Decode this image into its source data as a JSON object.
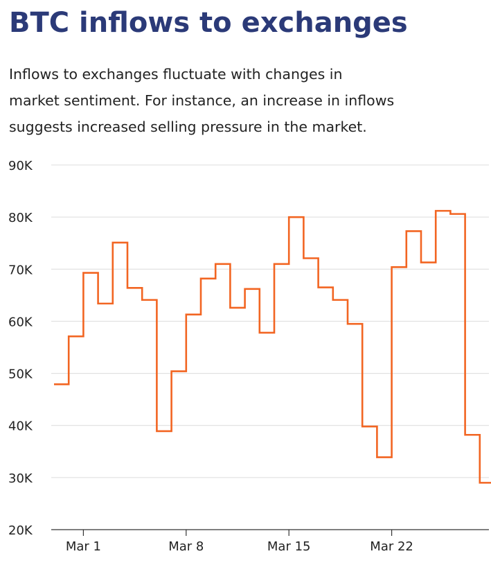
{
  "header": {
    "title": "BTC inflows to exchanges",
    "subtitle_lines": [
      "Inflows to exchanges fluctuate with changes in",
      "market sentiment. For instance, an increase in inflows",
      "suggests increased selling pressure in the market."
    ]
  },
  "chart_data": {
    "type": "line",
    "step": true,
    "title": "BTC inflows to exchanges",
    "subtitle": "Inflows to exchanges fluctuate with changes in market sentiment. For instance, an increase in inflows suggests increased selling pressure in the market.",
    "xlabel": "",
    "ylabel": "",
    "ylim": [
      20000,
      90000
    ],
    "yticks": [
      20000,
      30000,
      40000,
      50000,
      60000,
      70000,
      80000,
      90000
    ],
    "ytick_labels": [
      "20K",
      "30K",
      "40K",
      "50K",
      "60K",
      "70K",
      "80K",
      "90K"
    ],
    "xlim": [
      "Feb 27",
      "Mar 29"
    ],
    "xticks": [
      "Mar 1",
      "Mar 8",
      "Mar 15",
      "Mar 22"
    ],
    "grid": "horizontal",
    "line_color": "#f26522",
    "series": [
      {
        "x": [
          "Feb 27",
          "Feb 28",
          "Mar 1",
          "Mar 2",
          "Mar 3",
          "Mar 4",
          "Mar 5",
          "Mar 6",
          "Mar 7",
          "Mar 8",
          "Mar 9",
          "Mar 10",
          "Mar 11",
          "Mar 12",
          "Mar 13",
          "Mar 14",
          "Mar 15",
          "Mar 16",
          "Mar 17",
          "Mar 18",
          "Mar 19",
          "Mar 20",
          "Mar 21",
          "Mar 22",
          "Mar 23",
          "Mar 24",
          "Mar 25",
          "Mar 26",
          "Mar 27",
          "Mar 28",
          "Mar 29"
        ],
        "values": [
          47900,
          57100,
          69300,
          63400,
          75100,
          66400,
          64100,
          38900,
          50400,
          61300,
          68200,
          71000,
          62600,
          66200,
          57800,
          71000,
          80000,
          72100,
          66500,
          64100,
          59500,
          39800,
          33900,
          70400,
          77300,
          71300,
          81200,
          80600,
          38200,
          29000,
          29000
        ]
      }
    ]
  }
}
